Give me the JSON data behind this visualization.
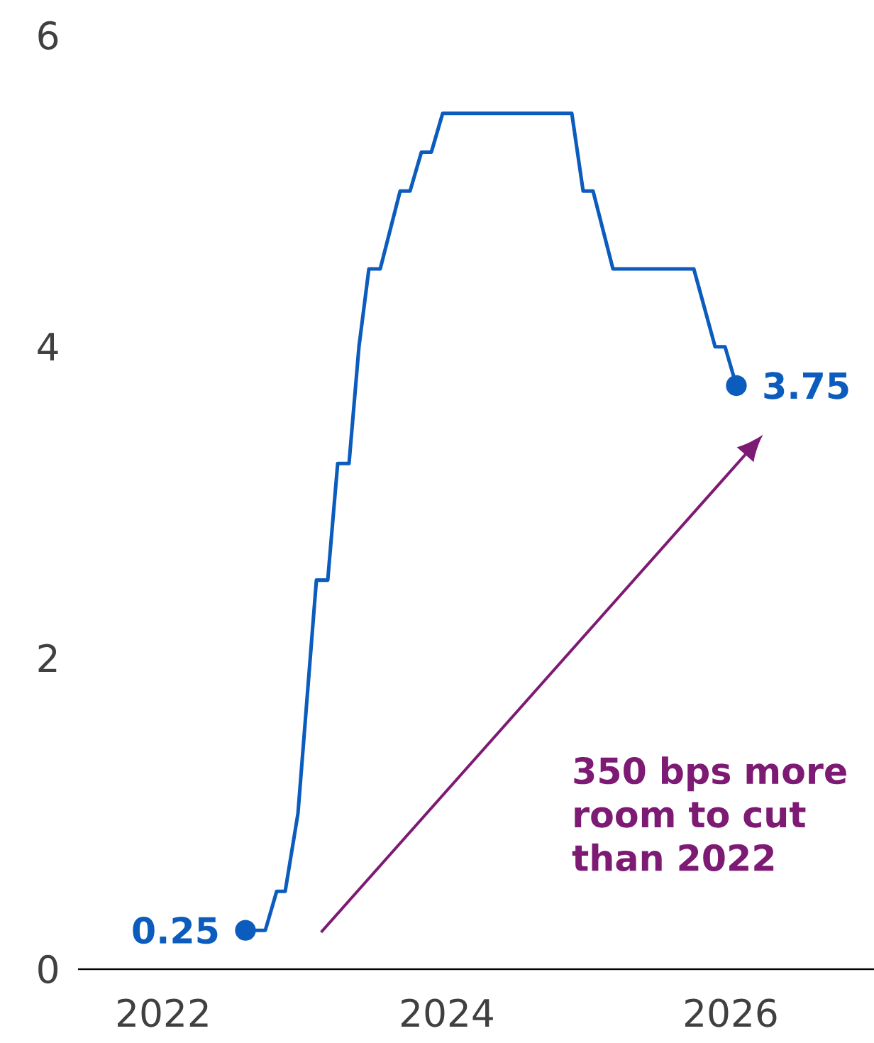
{
  "chart_data": {
    "type": "line",
    "color": "#0b5cbd",
    "marker": "none",
    "line_style": "solid",
    "x": [
      2022.58,
      2022.72,
      2022.8,
      2022.86,
      2022.95,
      2023.08,
      2023.16,
      2023.23,
      2023.31,
      2023.38,
      2023.45,
      2023.53,
      2023.67,
      2023.74,
      2023.82,
      2023.89,
      2023.97,
      2024.88,
      2024.96,
      2025.03,
      2025.17,
      2025.74,
      2025.89,
      2025.96,
      2026.04
    ],
    "values": [
      0.25,
      0.25,
      0.5,
      0.5,
      1.0,
      2.5,
      2.5,
      3.25,
      3.25,
      4.0,
      4.5,
      4.5,
      5.0,
      5.0,
      5.25,
      5.25,
      5.5,
      5.5,
      5.0,
      5.0,
      4.5,
      4.5,
      4.0,
      4.0,
      3.75
    ],
    "xlim": [
      2021.4,
      2027.01
    ],
    "xticks": [
      2022,
      2024,
      2026
    ],
    "ylim": [
      0,
      6
    ],
    "yticks": [
      0,
      2,
      4,
      6
    ],
    "annotations": [
      {
        "text": "0.25",
        "x": 2022.58,
        "y": 0.25
      },
      {
        "text": "3.75",
        "x": 2026.04,
        "y": 3.75
      },
      "350 bps more room to cut than 2022"
    ]
  }
}
